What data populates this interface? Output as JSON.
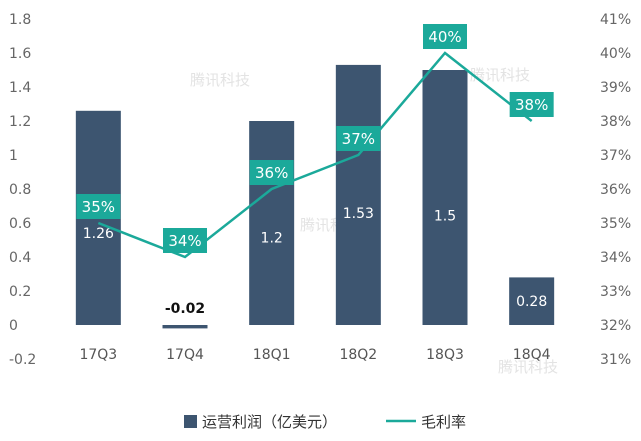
{
  "chart_data": {
    "type": "bar",
    "categories": [
      "17Q3",
      "17Q4",
      "18Q1",
      "18Q2",
      "18Q3",
      "18Q4"
    ],
    "series": [
      {
        "name": "运营利润（亿美元）",
        "type": "bar",
        "axis": "left",
        "values": [
          1.26,
          -0.02,
          1.2,
          1.53,
          1.5,
          0.28
        ],
        "labels": [
          "1.26",
          "-0.02",
          "1.2",
          "1.53",
          "1.5",
          "0.28"
        ]
      },
      {
        "name": "毛利率",
        "type": "line",
        "axis": "right",
        "values": [
          35,
          34,
          36,
          37,
          40,
          38
        ],
        "labels": [
          "35%",
          "34%",
          "36%",
          "37%",
          "40%",
          "38%"
        ]
      }
    ],
    "y_left": {
      "min": -0.2,
      "max": 1.8,
      "step": 0.2,
      "ticks": [
        "-0.2",
        "0",
        "0.2",
        "0.4",
        "0.6",
        "0.8",
        "1",
        "1.2",
        "1.4",
        "1.6",
        "1.8"
      ]
    },
    "y_right": {
      "min": 31,
      "max": 41,
      "step": 1,
      "ticks": [
        "31%",
        "32%",
        "33%",
        "34%",
        "35%",
        "36%",
        "37%",
        "38%",
        "39%",
        "40%",
        "41%"
      ]
    },
    "grid": false,
    "legend_position": "bottom",
    "colors": {
      "bar": "#3d5570",
      "line": "#1ba99a",
      "label_box": "#1ba99a"
    }
  },
  "watermark": "腾讯科技"
}
